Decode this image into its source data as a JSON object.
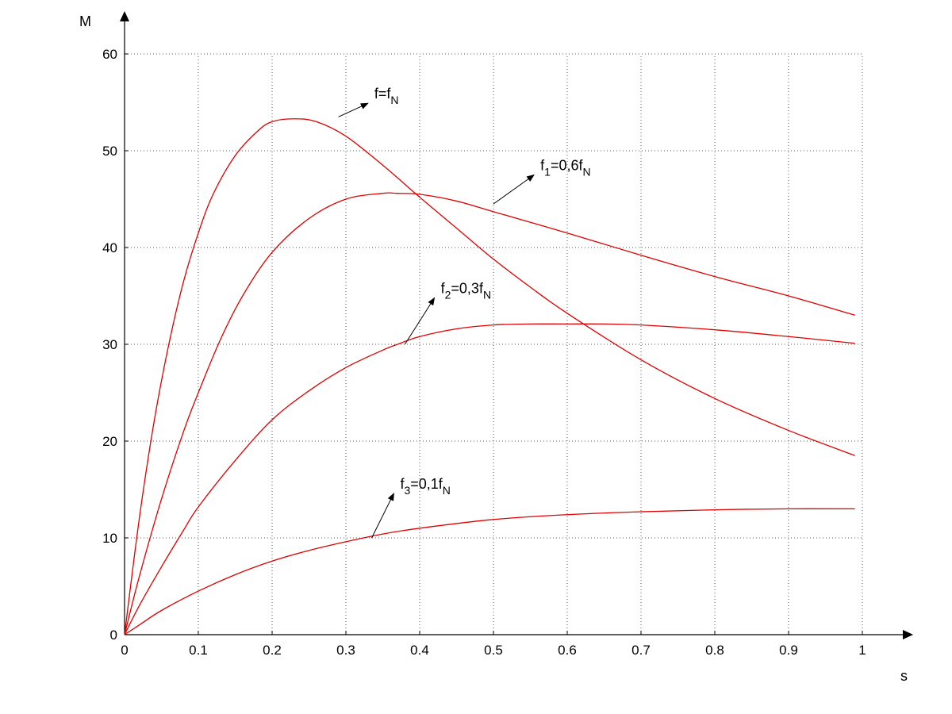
{
  "chart_data": {
    "type": "line",
    "xlabel": "s",
    "ylabel": "M",
    "xlim": [
      0,
      1
    ],
    "ylim": [
      0,
      60
    ],
    "xticks": [
      "0",
      "0.1",
      "0.2",
      "0.3",
      "0.4",
      "0.5",
      "0.6",
      "0.7",
      "0.8",
      "0.9",
      "1"
    ],
    "yticks": [
      "0",
      "10",
      "20",
      "30",
      "40",
      "50",
      "60"
    ],
    "grid": true,
    "line_color": "#e00000",
    "series": [
      {
        "x": [
          0,
          0.02,
          0.04,
          0.06,
          0.08,
          0.1,
          0.12,
          0.15,
          0.18,
          0.2,
          0.23,
          0.26,
          0.3,
          0.35,
          0.4,
          0.45,
          0.5,
          0.55,
          0.6,
          0.7,
          0.8,
          0.9,
          0.99
        ],
        "values": [
          0,
          12,
          22,
          30,
          36.5,
          41.5,
          45.5,
          49.5,
          52,
          53,
          53.3,
          53,
          51.5,
          48.5,
          45.2,
          42,
          38.8,
          35.9,
          33.2,
          28.4,
          24.4,
          21.1,
          18.5
        ]
      },
      {
        "x": [
          0,
          0.02,
          0.05,
          0.08,
          0.1,
          0.13,
          0.16,
          0.2,
          0.25,
          0.3,
          0.35,
          0.37,
          0.4,
          0.45,
          0.5,
          0.6,
          0.7,
          0.8,
          0.9,
          0.99
        ],
        "values": [
          0,
          6,
          14,
          21,
          25,
          30.5,
          35,
          39.5,
          43,
          45,
          45.6,
          45.6,
          45.5,
          44.8,
          43.7,
          41.5,
          39.2,
          37,
          35,
          33
        ]
      },
      {
        "x": [
          0,
          0.02,
          0.05,
          0.08,
          0.1,
          0.15,
          0.2,
          0.25,
          0.3,
          0.35,
          0.37,
          0.4,
          0.45,
          0.5,
          0.55,
          0.6,
          0.65,
          0.7,
          0.8,
          0.9,
          0.99
        ],
        "values": [
          0,
          3,
          7,
          10.8,
          13.2,
          18,
          22.2,
          25.2,
          27.6,
          29.4,
          30,
          30.8,
          31.6,
          32,
          32.1,
          32.1,
          32.1,
          32,
          31.5,
          30.8,
          30.1
        ]
      },
      {
        "x": [
          0,
          0.02,
          0.05,
          0.1,
          0.15,
          0.2,
          0.25,
          0.3,
          0.35,
          0.4,
          0.5,
          0.6,
          0.7,
          0.8,
          0.9,
          0.99
        ],
        "values": [
          0,
          1,
          2.5,
          4.5,
          6.2,
          7.6,
          8.7,
          9.6,
          10.4,
          11,
          11.9,
          12.4,
          12.7,
          12.9,
          13,
          13
        ]
      }
    ],
    "annotations": [
      {
        "main": "f=f",
        "sub": "N",
        "tail": [
          0.29,
          53.5
        ],
        "head": [
          0.33,
          54.9
        ]
      },
      {
        "prefix": "f",
        "prefix_sub": "1",
        "main": "=0,6f",
        "sub": "N",
        "tail": [
          0.5,
          44.5
        ],
        "head": [
          0.555,
          47.5
        ]
      },
      {
        "prefix": "f",
        "prefix_sub": "2",
        "main": "=0,3f",
        "sub": "N",
        "tail": [
          0.38,
          30
        ],
        "head": [
          0.42,
          34.8
        ]
      },
      {
        "prefix": "f",
        "prefix_sub": "3",
        "main": "=0,1f",
        "sub": "N",
        "tail": [
          0.335,
          10
        ],
        "head": [
          0.365,
          14.6
        ]
      }
    ]
  }
}
